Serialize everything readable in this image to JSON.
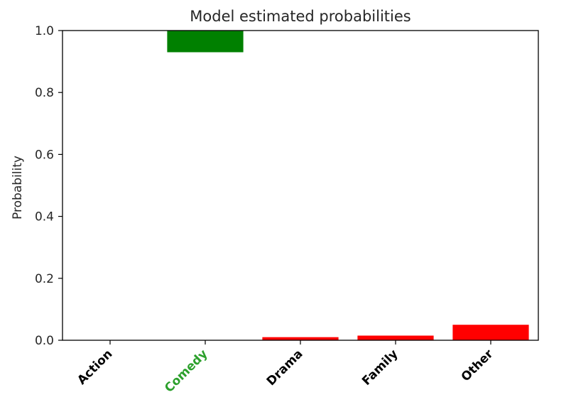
{
  "chart_data": {
    "type": "bar",
    "title": "Model estimated probabilities",
    "xlabel": "",
    "ylabel": "Probability",
    "categories": [
      "Action",
      "Comedy",
      "Drama",
      "Family",
      "Other"
    ],
    "values": [
      0.0,
      0.93,
      0.01,
      0.015,
      0.05
    ],
    "bar_colors": [
      "#ff0000",
      "#008000",
      "#ff0000",
      "#ff0000",
      "#ff0000"
    ],
    "category_label_colors": [
      "#000000",
      "#2ca02c",
      "#000000",
      "#000000",
      "#000000"
    ],
    "ylim": [
      0,
      1.0
    ],
    "yticks": [
      "0.0",
      "0.2",
      "0.4",
      "0.6",
      "0.8",
      "1.0"
    ],
    "grid": false,
    "bar_anchor": "top"
  }
}
